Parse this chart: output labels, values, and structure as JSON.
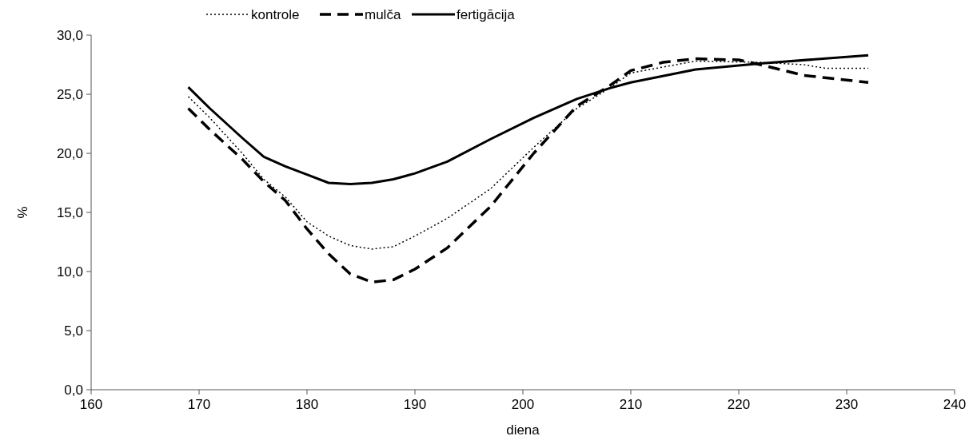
{
  "chart_data": {
    "type": "line",
    "xlabel": "diena",
    "ylabel": "%",
    "xlim": [
      160,
      240
    ],
    "xticks": [
      160,
      170,
      180,
      190,
      200,
      210,
      220,
      230,
      240
    ],
    "ylim": [
      0,
      30
    ],
    "yticks": [
      {
        "value": 0,
        "label": "0,0"
      },
      {
        "value": 5,
        "label": "5,0"
      },
      {
        "value": 10,
        "label": "10,0"
      },
      {
        "value": 15,
        "label": "15,0"
      },
      {
        "value": 20,
        "label": "20,0"
      },
      {
        "value": 25,
        "label": "25,0"
      },
      {
        "value": 30,
        "label": "30,0"
      }
    ],
    "legend": "top",
    "grid": false,
    "marker": "none",
    "series": [
      {
        "name": "kontrole",
        "color": "#000000",
        "line_style": "dotted",
        "x": [
          169,
          171,
          174,
          176,
          178,
          180,
          182,
          184,
          186,
          188,
          190,
          193,
          197,
          201,
          205,
          208,
          210,
          213,
          216,
          222,
          226,
          228,
          232
        ],
        "values": [
          24.8,
          23.0,
          20.0,
          17.8,
          16.3,
          14.2,
          13.0,
          12.2,
          11.9,
          12.1,
          13.0,
          14.5,
          17.0,
          20.5,
          23.8,
          25.5,
          26.8,
          27.3,
          27.8,
          27.7,
          27.5,
          27.2,
          27.2
        ]
      },
      {
        "name": "mulča",
        "color": "#000000",
        "line_style": "dashed",
        "x": [
          169,
          171,
          174,
          176,
          178,
          180,
          182,
          184,
          186,
          188,
          190,
          193,
          197,
          201,
          205,
          208,
          210,
          213,
          216,
          220,
          222,
          226,
          232
        ],
        "values": [
          23.8,
          22.0,
          19.5,
          17.6,
          16.0,
          13.6,
          11.5,
          9.8,
          9.1,
          9.3,
          10.2,
          12.0,
          15.5,
          20.0,
          24.0,
          25.7,
          27.0,
          27.7,
          28.0,
          27.9,
          27.5,
          26.6,
          26.0
        ]
      },
      {
        "name": "fertigācija",
        "color": "#000000",
        "line_style": "solid",
        "x": [
          169,
          171,
          174,
          176,
          178,
          180,
          182,
          184,
          186,
          188,
          190,
          193,
          197,
          201,
          205,
          208,
          210,
          216,
          222,
          232
        ],
        "values": [
          25.6,
          23.8,
          21.3,
          19.7,
          18.9,
          18.2,
          17.5,
          17.4,
          17.5,
          17.8,
          18.3,
          19.3,
          21.2,
          23.0,
          24.6,
          25.5,
          26.0,
          27.1,
          27.6,
          28.3
        ]
      }
    ]
  }
}
